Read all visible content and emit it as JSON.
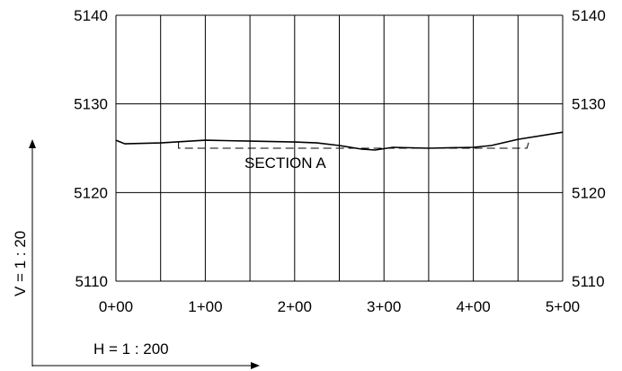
{
  "chart_data": {
    "type": "line",
    "title": "",
    "annotation": "SECTION A",
    "x_ticks": [
      "0+00",
      "1+00",
      "2+00",
      "3+00",
      "4+00",
      "5+00"
    ],
    "y_ticks": [
      "5110",
      "5120",
      "5130",
      "5140"
    ],
    "xlim": [
      0,
      500
    ],
    "ylim": [
      5110,
      5140
    ],
    "grid": true,
    "scales": {
      "vertical": "V = 1 : 20",
      "horizontal": "H = 1 : 200"
    },
    "series": [
      {
        "style": "solid",
        "x": [
          0,
          10,
          50,
          100,
          150,
          200,
          225,
          250,
          275,
          290,
          310,
          350,
          400,
          420,
          450,
          500
        ],
        "y": [
          5125.9,
          5125.5,
          5125.6,
          5125.9,
          5125.8,
          5125.7,
          5125.6,
          5125.3,
          5124.9,
          5124.8,
          5125.1,
          5125.0,
          5125.1,
          5125.3,
          5126.0,
          5126.8
        ]
      },
      {
        "style": "dashed",
        "x": [
          70,
          70,
          460,
          463
        ],
        "y": [
          5125.7,
          5125.0,
          5125.0,
          5126.0
        ]
      }
    ]
  }
}
